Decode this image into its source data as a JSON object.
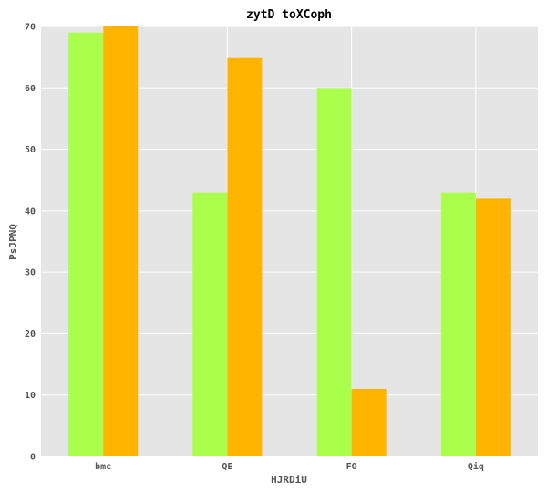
{
  "chart_data": {
    "type": "bar",
    "title": "zytD toXCoph",
    "xlabel": "HJRDiU",
    "ylabel": "PsJPNQ",
    "categories": [
      "bmc",
      "QE",
      "FO",
      "Qiq"
    ],
    "series": [
      {
        "values": [
          69,
          43,
          60,
          43
        ],
        "color": "#aaff4d"
      },
      {
        "values": [
          70,
          65,
          11,
          42
        ],
        "color": "#ffb500"
      }
    ],
    "ylim": [
      0,
      70
    ],
    "yticks": [
      0,
      10,
      20,
      30,
      40,
      50,
      60,
      70
    ],
    "grid": true,
    "background_color": "#e5e5e5",
    "grid_color": "#ffffff"
  }
}
